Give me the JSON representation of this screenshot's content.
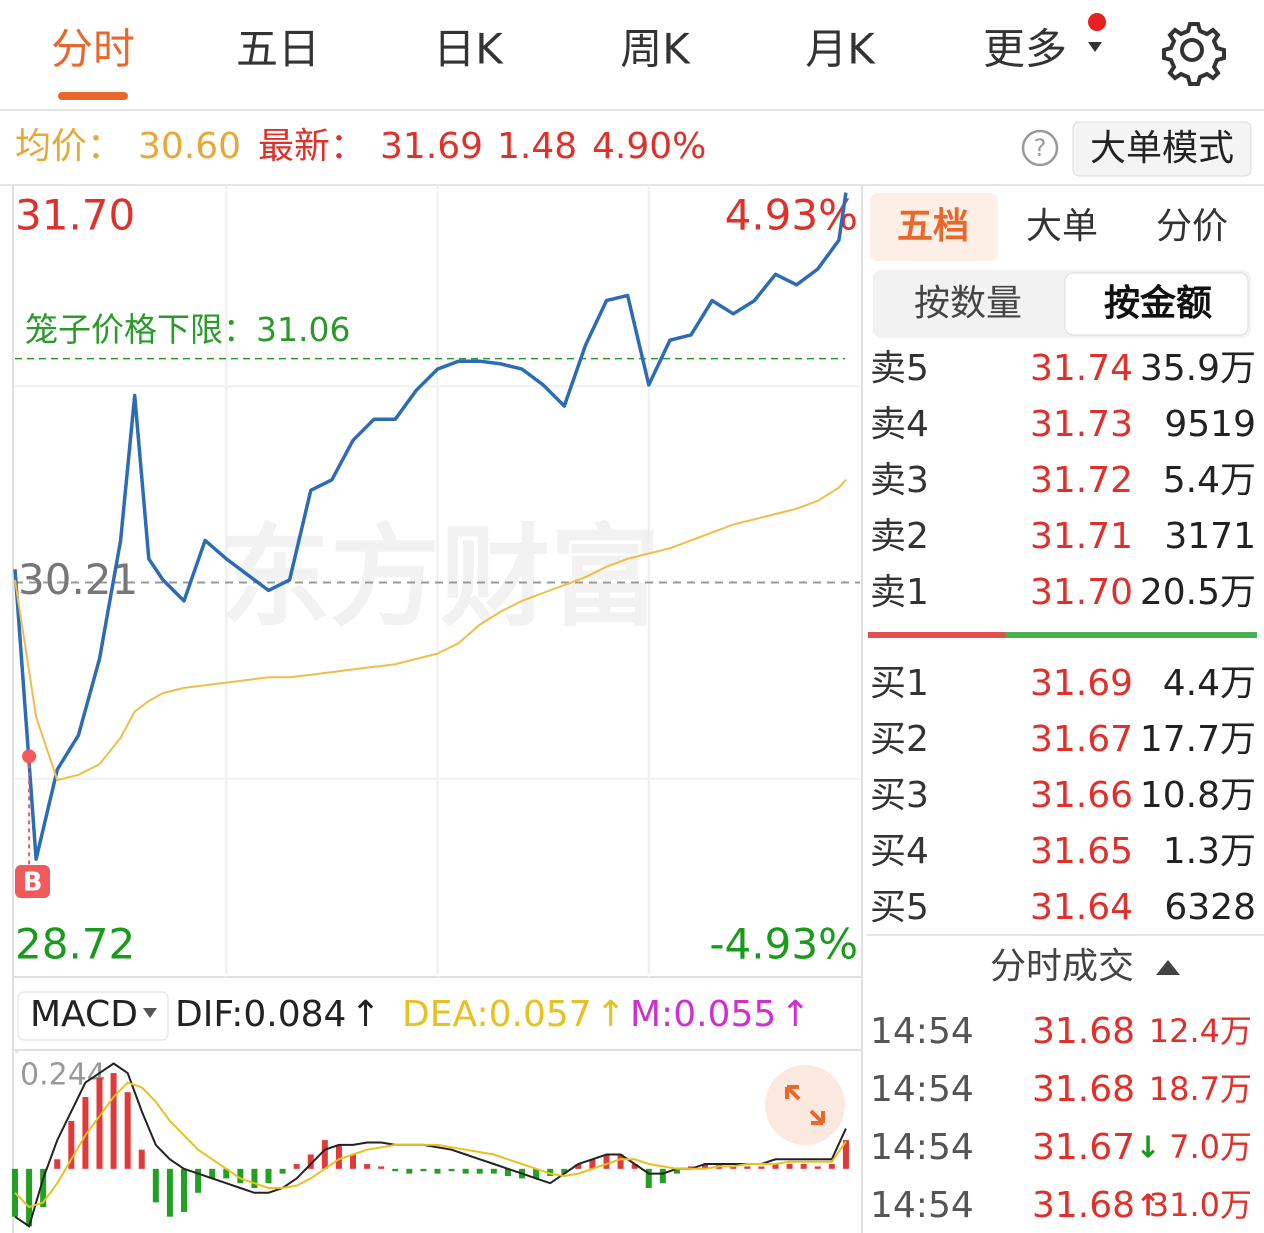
{
  "tabs": [
    "分时",
    "五日",
    "日K",
    "周K",
    "月K",
    "更多"
  ],
  "info": {
    "avg_label": "均价：",
    "avg": "30.60",
    "latest_label": "最新：",
    "latest": "31.69",
    "change": "1.48",
    "pct": "4.90%",
    "help": "?",
    "mode_button": "大单模式"
  },
  "panel": {
    "tabs": [
      "五档",
      "大单",
      "分价"
    ],
    "toggles": [
      "按数量",
      "按金额"
    ],
    "asks": [
      {
        "label": "卖5",
        "price": "31.74",
        "volume": "35.9万"
      },
      {
        "label": "卖4",
        "price": "31.73",
        "volume": "9519"
      },
      {
        "label": "卖3",
        "price": "31.72",
        "volume": "5.4万"
      },
      {
        "label": "卖2",
        "price": "31.71",
        "volume": "3171"
      },
      {
        "label": "卖1",
        "price": "31.70",
        "volume": "20.5万"
      }
    ],
    "bids": [
      {
        "label": "买1",
        "price": "31.69",
        "volume": "4.4万"
      },
      {
        "label": "买2",
        "price": "31.67",
        "volume": "17.7万"
      },
      {
        "label": "买3",
        "price": "31.66",
        "volume": "10.8万"
      },
      {
        "label": "买4",
        "price": "31.65",
        "volume": "1.3万"
      },
      {
        "label": "买5",
        "price": "31.64",
        "volume": "6328"
      }
    ],
    "trades_title": "分时成交",
    "trades": [
      {
        "time": "14:54",
        "price": "31.68",
        "volume": "12.4万"
      },
      {
        "time": "14:54",
        "price": "31.68",
        "volume": "18.7万"
      },
      {
        "time": "14:54",
        "price": "31.67",
        "arrow": "↓",
        "volume": "7.0万"
      },
      {
        "time": "14:54",
        "price": "31.68",
        "arrow": "↑",
        "volume": "31.0万"
      }
    ]
  },
  "chart_data": [
    {
      "type": "line",
      "watermark": "东方财富",
      "x": [
        0,
        6,
        12,
        18,
        24,
        30,
        34,
        38,
        42,
        48,
        54,
        60,
        66,
        72,
        78,
        84,
        90,
        96,
        102,
        108,
        114,
        120,
        126,
        132,
        138,
        144,
        150,
        156,
        162,
        168,
        174,
        180,
        186,
        192,
        198,
        204,
        210,
        216,
        222,
        228,
        234,
        236
      ],
      "xlim": [
        0,
        240
      ],
      "ylim": [
        28.72,
        31.7
      ],
      "yticks": [
        {
          "value": 31.7,
          "label": "31.70"
        },
        30.21,
        {
          "value": 28.72,
          "label": "28.72"
        }
      ],
      "y2lim": [
        -4.93,
        4.93
      ],
      "y2ticks": [
        {
          "value": 4.93,
          "label": "4.93%"
        },
        {
          "value": -4.93,
          "label": "-4.93%"
        }
      ],
      "series": [
        {
          "color": "#2c6bb5",
          "values": [
            30.26,
            29.16,
            29.5,
            29.63,
            29.92,
            30.37,
            30.92,
            30.3,
            30.22,
            30.14,
            30.37,
            30.3,
            30.24,
            30.18,
            30.22,
            30.56,
            30.6,
            30.75,
            30.83,
            30.83,
            30.94,
            31.02,
            31.05,
            31.05,
            31.04,
            31.02,
            30.96,
            30.88,
            31.11,
            31.28,
            31.3,
            30.96,
            31.13,
            31.15,
            31.28,
            31.23,
            31.28,
            31.38,
            31.34,
            31.4,
            31.51,
            31.69
          ]
        },
        {
          "color": "#f0be48",
          "values": [
            30.22,
            29.7,
            29.46,
            29.48,
            29.52,
            29.62,
            29.72,
            29.76,
            29.79,
            29.81,
            29.82,
            29.83,
            29.84,
            29.85,
            29.85,
            29.86,
            29.87,
            29.88,
            29.89,
            29.9,
            29.92,
            29.94,
            29.98,
            30.05,
            30.1,
            30.14,
            30.17,
            30.2,
            30.23,
            30.27,
            30.3,
            30.32,
            30.34,
            30.37,
            30.4,
            30.43,
            30.45,
            30.47,
            30.49,
            30.52,
            30.57,
            30.6
          ]
        }
      ],
      "annotation": {
        "text": "笼子价格下限：31.06",
        "value": 31.06,
        "color": "#2a9a2a"
      },
      "marker": {
        "text": "B",
        "x": 4,
        "value": 29.55,
        "color": "#f05a5a"
      }
    },
    {
      "type": "bar",
      "title": "MACD",
      "x": [
        0,
        4,
        8,
        12,
        16,
        20,
        24,
        28,
        32,
        36,
        40,
        44,
        48,
        52,
        56,
        60,
        64,
        68,
        72,
        76,
        80,
        84,
        88,
        92,
        96,
        100,
        104,
        108,
        112,
        116,
        120,
        124,
        128,
        132,
        136,
        140,
        144,
        148,
        152,
        156,
        160,
        164,
        168,
        172,
        176,
        180,
        184,
        188,
        192,
        196,
        200,
        204,
        208,
        212,
        216,
        220,
        224,
        228,
        232,
        236
      ],
      "xlim": [
        0,
        240
      ],
      "ylim": [
        -0.134,
        0.244
      ],
      "yticks": [
        0.244
      ],
      "up_color": "#e03a3a",
      "down_color": "#22a022",
      "series": [
        {
          "name": "DIF:0.084",
          "trend": "↑",
          "kind": "line",
          "color": "#222222",
          "values": [
            -0.1,
            -0.12,
            -0.02,
            0.06,
            0.12,
            0.18,
            0.2,
            0.22,
            0.2,
            0.12,
            0.05,
            0.02,
            0.0,
            -0.01,
            -0.02,
            -0.03,
            -0.04,
            -0.05,
            -0.05,
            -0.04,
            -0.02,
            0.01,
            0.04,
            0.05,
            0.05,
            0.055,
            0.055,
            0.05,
            0.05,
            0.05,
            0.045,
            0.04,
            0.03,
            0.02,
            0.01,
            0.0,
            -0.01,
            -0.02,
            -0.03,
            -0.01,
            0.01,
            0.02,
            0.03,
            0.03,
            0.01,
            -0.01,
            -0.01,
            0.0,
            0.0,
            0.01,
            0.01,
            0.01,
            0.01,
            0.01,
            0.02,
            0.02,
            0.02,
            0.02,
            0.02,
            0.084
          ]
        },
        {
          "name": "DEA:0.057",
          "trend": "↑",
          "kind": "line",
          "color": "#e8c020",
          "values": [
            -0.05,
            -0.08,
            -0.07,
            -0.03,
            0.02,
            0.07,
            0.11,
            0.15,
            0.18,
            0.17,
            0.14,
            0.1,
            0.07,
            0.04,
            0.02,
            0.0,
            -0.02,
            -0.03,
            -0.04,
            -0.04,
            -0.035,
            -0.02,
            0.0,
            0.02,
            0.03,
            0.04,
            0.045,
            0.05,
            0.05,
            0.05,
            0.05,
            0.045,
            0.04,
            0.035,
            0.03,
            0.02,
            0.01,
            0.0,
            -0.01,
            -0.015,
            -0.01,
            0.0,
            0.01,
            0.02,
            0.02,
            0.01,
            0.005,
            0.0,
            0.0,
            0.0,
            0.005,
            0.005,
            0.01,
            0.01,
            0.01,
            0.015,
            0.015,
            0.015,
            0.015,
            0.057
          ]
        },
        {
          "name": "M:0.055",
          "trend": "↑",
          "kind": "bar",
          "color": "#d030d0",
          "values": [
            -0.1,
            -0.12,
            -0.08,
            0.02,
            0.1,
            0.15,
            0.19,
            0.2,
            0.16,
            0.04,
            -0.07,
            -0.1,
            -0.09,
            -0.05,
            -0.02,
            -0.02,
            -0.03,
            -0.04,
            -0.03,
            -0.01,
            0.01,
            0.03,
            0.06,
            0.05,
            0.03,
            0.01,
            0.005,
            -0.005,
            -0.01,
            -0.005,
            -0.01,
            -0.005,
            -0.01,
            -0.01,
            -0.01,
            -0.015,
            -0.02,
            -0.02,
            -0.015,
            -0.01,
            0.01,
            0.02,
            0.03,
            0.03,
            0.01,
            -0.04,
            -0.03,
            -0.01,
            0.005,
            0.01,
            0.01,
            0.005,
            0.005,
            0.005,
            0.01,
            0.01,
            0.01,
            0.005,
            0.01,
            0.06
          ]
        }
      ]
    }
  ]
}
